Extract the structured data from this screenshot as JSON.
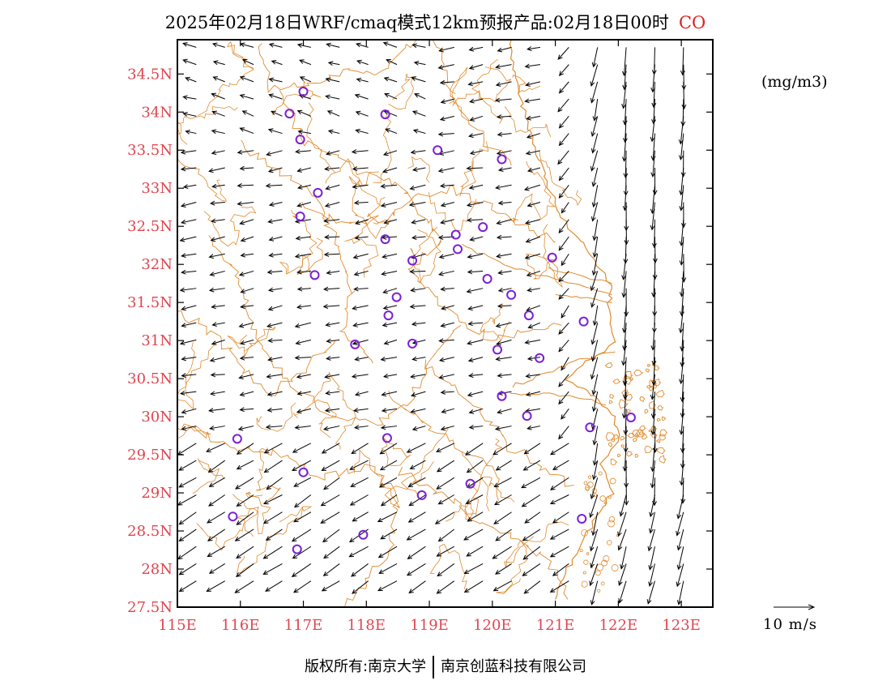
{
  "title": {
    "main": "2025年02月18日WRF/cmaq模式12km预报产品:02月18日00时",
    "species": "CO"
  },
  "units": "(mg/m3)",
  "scale": {
    "label": "10 m/s",
    "speed_ms": 10
  },
  "footer": {
    "left": "版权所有:南京大学",
    "right": "南京创蓝科技有限公司"
  },
  "colors": {
    "tick_label": "#e0454f",
    "boundary": "#e08a2e",
    "station": "#7a1fd6",
    "arrow": "#000000",
    "species": "#e02020"
  },
  "map": {
    "lon_range": [
      115.0,
      123.5
    ],
    "lat_range": [
      27.5,
      34.95
    ],
    "x_ticks": [
      "115E",
      "116E",
      "117E",
      "118E",
      "119E",
      "120E",
      "121E",
      "122E",
      "123E"
    ],
    "x_tick_values": [
      115,
      116,
      117,
      118,
      119,
      120,
      121,
      122,
      123
    ],
    "y_ticks": [
      "27.5N",
      "28N",
      "28.5N",
      "29N",
      "29.5N",
      "30N",
      "30.5N",
      "31N",
      "31.5N",
      "32N",
      "32.5N",
      "33N",
      "33.5N",
      "34N",
      "34.5N"
    ],
    "y_tick_values": [
      27.5,
      28,
      28.5,
      29,
      29.5,
      30,
      30.5,
      31,
      31.5,
      32,
      32.5,
      33,
      33.5,
      34,
      34.5
    ],
    "stations": [
      {
        "lon": 117.0,
        "lat": 34.27
      },
      {
        "lon": 116.78,
        "lat": 33.98
      },
      {
        "lon": 118.3,
        "lat": 33.97
      },
      {
        "lon": 116.95,
        "lat": 33.64
      },
      {
        "lon": 119.13,
        "lat": 33.5
      },
      {
        "lon": 120.15,
        "lat": 33.38
      },
      {
        "lon": 117.23,
        "lat": 32.94
      },
      {
        "lon": 116.95,
        "lat": 32.63
      },
      {
        "lon": 119.85,
        "lat": 32.49
      },
      {
        "lon": 119.42,
        "lat": 32.39
      },
      {
        "lon": 118.3,
        "lat": 32.33
      },
      {
        "lon": 119.45,
        "lat": 32.2
      },
      {
        "lon": 118.73,
        "lat": 32.05
      },
      {
        "lon": 120.95,
        "lat": 32.09
      },
      {
        "lon": 117.18,
        "lat": 31.86
      },
      {
        "lon": 119.92,
        "lat": 31.81
      },
      {
        "lon": 120.3,
        "lat": 31.6
      },
      {
        "lon": 118.48,
        "lat": 31.57
      },
      {
        "lon": 118.35,
        "lat": 31.33
      },
      {
        "lon": 120.58,
        "lat": 31.33
      },
      {
        "lon": 121.45,
        "lat": 31.25
      },
      {
        "lon": 117.82,
        "lat": 30.95
      },
      {
        "lon": 118.73,
        "lat": 30.96
      },
      {
        "lon": 120.08,
        "lat": 30.88
      },
      {
        "lon": 120.75,
        "lat": 30.77
      },
      {
        "lon": 120.15,
        "lat": 30.27
      },
      {
        "lon": 120.55,
        "lat": 30.01
      },
      {
        "lon": 121.55,
        "lat": 29.86
      },
      {
        "lon": 122.2,
        "lat": 29.99
      },
      {
        "lon": 115.95,
        "lat": 29.71
      },
      {
        "lon": 118.33,
        "lat": 29.72
      },
      {
        "lon": 117.0,
        "lat": 29.27
      },
      {
        "lon": 119.65,
        "lat": 29.12
      },
      {
        "lon": 118.88,
        "lat": 28.97
      },
      {
        "lon": 115.88,
        "lat": 28.69
      },
      {
        "lon": 121.42,
        "lat": 28.66
      },
      {
        "lon": 117.95,
        "lat": 28.45
      },
      {
        "lon": 116.9,
        "lat": 28.26
      }
    ]
  },
  "wind": {
    "description_grid": "lon 115.3..123.3 step 0.45, lat 27.7..34.85 step 0.225"
  }
}
